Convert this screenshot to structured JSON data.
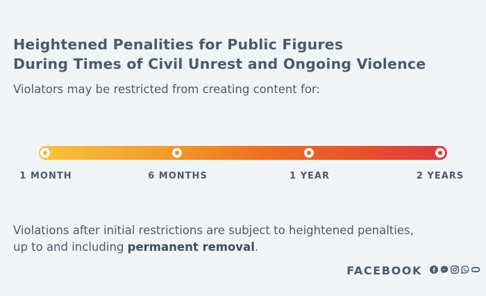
{
  "title_line1": "Heightened Penalities for Public Figures",
  "title_line2": "During Times of Civil Unrest and Ongoing Violence",
  "subtitle": "Violators may be restricted from creating content for:",
  "timeline": {
    "labels": [
      "1 MONTH",
      "6 MONTHS",
      "1 YEAR",
      "2 YEARS"
    ]
  },
  "footnote": {
    "line1": "Violations after initial restrictions are subject to heightened penalties,",
    "line2_prefix": "up to and including ",
    "line2_bold": "permanent removal",
    "line2_suffix": "."
  },
  "brand": "FACEBOOK",
  "icons": [
    "facebook-icon",
    "messenger-icon",
    "instagram-icon",
    "whatsapp-icon",
    "oculus-icon"
  ],
  "colors": {
    "background": "#f1f4f7",
    "text": "#4b5a6a",
    "gradient_start": "#f9c33b",
    "gradient_end": "#dc3a3f"
  }
}
